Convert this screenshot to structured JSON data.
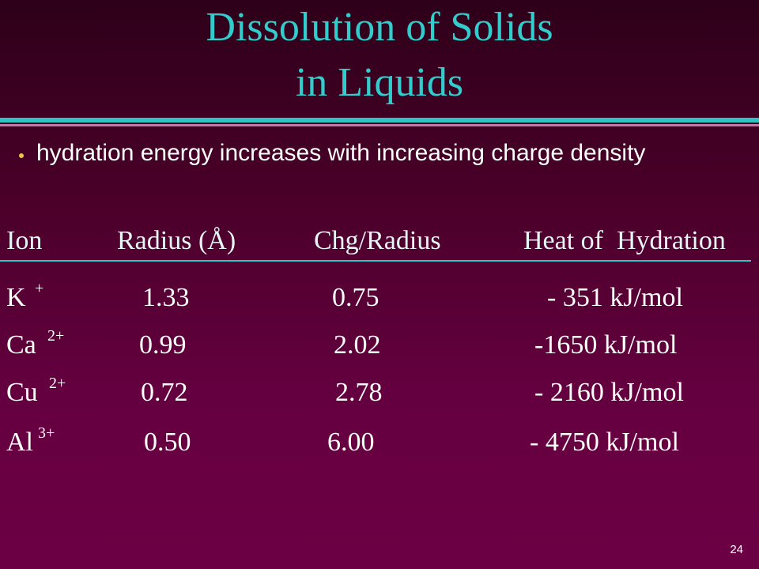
{
  "header": {
    "title": [
      "Dissolution of Solids",
      "in Liquids"
    ]
  },
  "bullets": [
    "hydration energy increases with increasing charge density"
  ],
  "table": {
    "columns": [
      "Ion",
      "Radius (Å)",
      "Chg/Radius",
      "Heat of  Hydration"
    ],
    "rows": [
      [
        {
          "symbol": "K",
          "charge": "+"
        },
        "1.33",
        "0.75",
        "- 351 kJ/mol"
      ],
      [
        {
          "symbol": "Ca",
          "charge": "2+"
        },
        "0.99",
        "2.02",
        "-1650 kJ/mol"
      ],
      [
        {
          "symbol": "Cu",
          "charge": "2+"
        },
        "0.72",
        "2.78",
        "- 2160 kJ/mol"
      ],
      [
        {
          "symbol": "Al",
          "charge": "3+"
        },
        "0.50",
        "6.00",
        "- 4750 kJ/mol"
      ]
    ]
  },
  "page_number": "24"
}
